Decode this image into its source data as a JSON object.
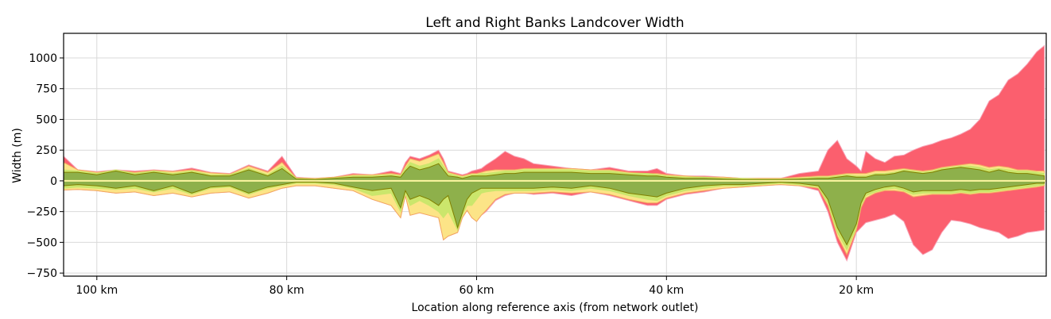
{
  "chart_data": {
    "type": "area",
    "title": "Left and Right Banks Landcover Width",
    "xlabel": "Location along reference axis (from network outlet)",
    "ylabel": "Width (m)",
    "x_unit": "km",
    "x_reversed": true,
    "xlim": [
      103.5,
      0
    ],
    "ylim": [
      -775,
      1200
    ],
    "grid": true,
    "x_ticks": [
      100,
      80,
      60,
      40,
      20
    ],
    "x_tick_labels": [
      "100 km",
      "80 km",
      "60 km",
      "40 km",
      "20 km"
    ],
    "y_ticks": [
      1000,
      750,
      500,
      250,
      0,
      -250,
      -500,
      -750
    ],
    "y_tick_labels": [
      "1000",
      "750",
      "500",
      "250",
      "0",
      "−250",
      "−500",
      "−750"
    ],
    "colors": {
      "urban_fill": "#fb5f6e",
      "urban_edge": "#f7a3b6",
      "pink_fill": "#fb6495",
      "light_fill": "#fdf6a2",
      "yellow_fill": "#fce487",
      "yellow_edge": "#f2a660",
      "green_fill": "#cbe66c",
      "dark_green_fill": "#8eb04b",
      "line": "#808000"
    },
    "x": [
      103.5,
      102,
      100,
      98,
      96,
      94,
      92,
      90,
      88,
      86,
      84,
      82,
      80.5,
      79,
      77,
      75,
      73,
      71,
      69,
      68,
      67.5,
      67,
      66,
      65,
      64,
      63.5,
      63,
      62,
      61.5,
      61,
      60.5,
      60,
      59.5,
      59,
      58,
      57,
      56,
      55,
      54,
      52,
      50,
      48,
      46,
      44,
      42,
      41,
      40,
      38,
      36,
      34,
      32,
      30,
      28,
      26,
      24,
      23,
      22,
      21,
      20,
      19.5,
      19,
      18,
      17,
      16,
      15,
      14,
      13,
      12,
      11,
      10,
      9,
      8,
      7,
      6,
      5,
      4,
      3,
      2,
      1,
      0.2
    ],
    "series": [
      {
        "values_pos": [
          200,
          90,
          75,
          90,
          80,
          90,
          80,
          105,
          70,
          60,
          130,
          80,
          200,
          30,
          20,
          30,
          60,
          50,
          80,
          60,
          150,
          200,
          180,
          210,
          250,
          180,
          80,
          60,
          50,
          60,
          80,
          90,
          100,
          130,
          180,
          240,
          200,
          180,
          140,
          120,
          100,
          90,
          110,
          80,
          80,
          100,
          60,
          40,
          40,
          30,
          20,
          20,
          20,
          60,
          80,
          250,
          330,
          180,
          120,
          80,
          240,
          180,
          150,
          200,
          210,
          250,
          280,
          300,
          330,
          350,
          380,
          420,
          500,
          650,
          700,
          820,
          870,
          950,
          1050,
          1100
        ],
        "values_neg": [
          -75,
          -70,
          -80,
          -100,
          -90,
          -120,
          -100,
          -130,
          -100,
          -90,
          -140,
          -100,
          -60,
          -40,
          -40,
          -60,
          -80,
          -150,
          -200,
          -300,
          -120,
          -280,
          -260,
          -280,
          -300,
          -480,
          -450,
          -420,
          -300,
          -240,
          -300,
          -330,
          -280,
          -250,
          -160,
          -120,
          -100,
          -100,
          -110,
          -100,
          -120,
          -90,
          -120,
          -160,
          -200,
          -200,
          -150,
          -110,
          -90,
          -60,
          -50,
          -40,
          -30,
          -40,
          -80,
          -250,
          -500,
          -650,
          -420,
          -380,
          -340,
          -320,
          -300,
          -270,
          -330,
          -520,
          -600,
          -560,
          -420,
          -320,
          -330,
          -350,
          -380,
          -400,
          -420,
          -470,
          -450,
          -420,
          -410,
          -400
        ]
      },
      {
        "values_pos": [
          150,
          90,
          70,
          85,
          70,
          85,
          75,
          90,
          65,
          55,
          120,
          70,
          150,
          25,
          20,
          30,
          50,
          50,
          60,
          50,
          120,
          180,
          160,
          190,
          220,
          150,
          70,
          50,
          40,
          50,
          60,
          60,
          70,
          80,
          90,
          90,
          90,
          100,
          100,
          100,
          100,
          90,
          90,
          70,
          60,
          60,
          50,
          40,
          30,
          30,
          20,
          20,
          20,
          30,
          40,
          40,
          50,
          60,
          60,
          60,
          60,
          80,
          80,
          90,
          100,
          90,
          80,
          90,
          110,
          120,
          130,
          140,
          130,
          110,
          120,
          110,
          90,
          90,
          80,
          80
        ],
        "values_neg": [
          -75,
          -70,
          -80,
          -100,
          -90,
          -120,
          -100,
          -130,
          -100,
          -90,
          -140,
          -100,
          -60,
          -40,
          -40,
          -60,
          -80,
          -150,
          -200,
          -300,
          -120,
          -280,
          -260,
          -280,
          -300,
          -480,
          -450,
          -420,
          -300,
          -240,
          -300,
          -330,
          -280,
          -240,
          -150,
          -110,
          -100,
          -100,
          -100,
          -90,
          -100,
          -90,
          -110,
          -150,
          -180,
          -180,
          -140,
          -100,
          -80,
          -60,
          -50,
          -40,
          -30,
          -40,
          -60,
          -200,
          -450,
          -600,
          -400,
          -220,
          -140,
          -100,
          -80,
          -80,
          -90,
          -130,
          -120,
          -110,
          -110,
          -110,
          -100,
          -110,
          -100,
          -100,
          -90,
          -80,
          -70,
          -60,
          -50,
          -40
        ]
      },
      {
        "values_pos": [
          90,
          80,
          60,
          90,
          60,
          80,
          60,
          80,
          50,
          50,
          100,
          50,
          120,
          20,
          15,
          25,
          40,
          40,
          50,
          40,
          100,
          150,
          120,
          140,
          180,
          120,
          60,
          40,
          30,
          40,
          50,
          50,
          60,
          60,
          70,
          80,
          80,
          90,
          90,
          90,
          90,
          80,
          80,
          60,
          60,
          50,
          40,
          30,
          30,
          20,
          20,
          15,
          15,
          20,
          30,
          30,
          40,
          50,
          40,
          40,
          40,
          60,
          60,
          70,
          90,
          80,
          70,
          80,
          100,
          110,
          120,
          120,
          110,
          90,
          100,
          90,
          80,
          80,
          70,
          60
        ],
        "values_neg": [
          -60,
          -50,
          -60,
          -70,
          -60,
          -90,
          -60,
          -110,
          -60,
          -50,
          -110,
          -60,
          -40,
          -20,
          -20,
          -30,
          -60,
          -120,
          -100,
          -250,
          -100,
          -200,
          -160,
          -200,
          -250,
          -300,
          -250,
          -400,
          -280,
          -200,
          -200,
          -150,
          -100,
          -90,
          -80,
          -80,
          -80,
          -80,
          -80,
          -70,
          -80,
          -60,
          -80,
          -120,
          -150,
          -160,
          -120,
          -80,
          -60,
          -40,
          -40,
          -30,
          -20,
          -30,
          -50,
          -180,
          -420,
          -560,
          -380,
          -200,
          -120,
          -90,
          -70,
          -60,
          -80,
          -110,
          -100,
          -100,
          -100,
          -100,
          -90,
          -100,
          -90,
          -90,
          -80,
          -70,
          -60,
          -50,
          -40,
          -30
        ]
      },
      {
        "values_pos": [
          70,
          70,
          50,
          80,
          50,
          70,
          50,
          70,
          40,
          40,
          90,
          40,
          100,
          15,
          10,
          20,
          30,
          30,
          40,
          30,
          80,
          120,
          90,
          110,
          140,
          90,
          40,
          30,
          20,
          30,
          40,
          40,
          40,
          40,
          50,
          60,
          60,
          70,
          70,
          70,
          70,
          60,
          60,
          50,
          40,
          40,
          30,
          20,
          20,
          15,
          10,
          10,
          10,
          15,
          20,
          20,
          30,
          40,
          30,
          30,
          30,
          50,
          50,
          60,
          80,
          70,
          60,
          70,
          90,
          100,
          110,
          100,
          90,
          70,
          90,
          70,
          60,
          60,
          50,
          40
        ],
        "values_neg": [
          -40,
          -30,
          -40,
          -60,
          -40,
          -80,
          -40,
          -100,
          -50,
          -40,
          -100,
          -50,
          -30,
          -10,
          -10,
          -20,
          -50,
          -80,
          -60,
          -220,
          -80,
          -150,
          -120,
          -150,
          -200,
          -150,
          -120,
          -380,
          -260,
          -150,
          -100,
          -80,
          -60,
          -60,
          -60,
          -60,
          -60,
          -60,
          -60,
          -50,
          -60,
          -40,
          -60,
          -100,
          -120,
          -130,
          -100,
          -60,
          -40,
          -30,
          -30,
          -20,
          -10,
          -20,
          -40,
          -150,
          -380,
          -520,
          -350,
          -180,
          -100,
          -70,
          -50,
          -40,
          -60,
          -90,
          -80,
          -80,
          -80,
          -80,
          -70,
          -80,
          -70,
          -70,
          -60,
          -50,
          -40,
          -30,
          -20,
          -20
        ]
      }
    ]
  }
}
